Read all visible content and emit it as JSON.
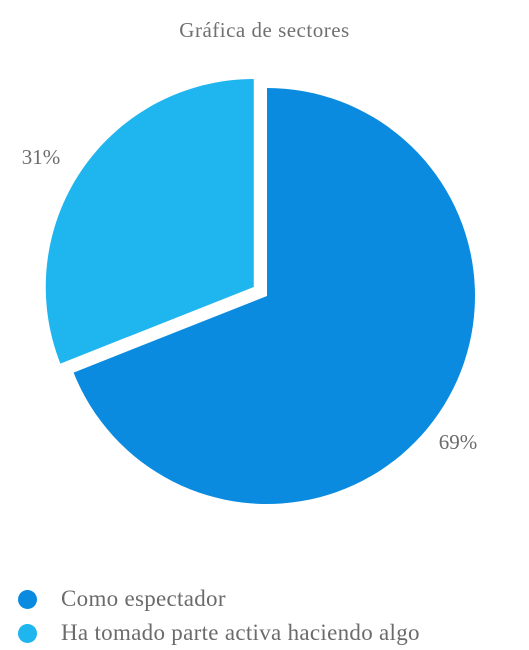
{
  "chart_data": {
    "type": "pie",
    "title": "Gráfica de sectores",
    "categories": [
      "Como espectador",
      "Ha tomado parte activa haciendo algo"
    ],
    "values": [
      69,
      31
    ],
    "data_labels": [
      "69%",
      "31%"
    ],
    "colors": [
      "#0a8be0",
      "#1fb5ee"
    ],
    "exploded_slice": "Ha tomado parte activa haciendo algo",
    "legend_position": "bottom-left"
  }
}
